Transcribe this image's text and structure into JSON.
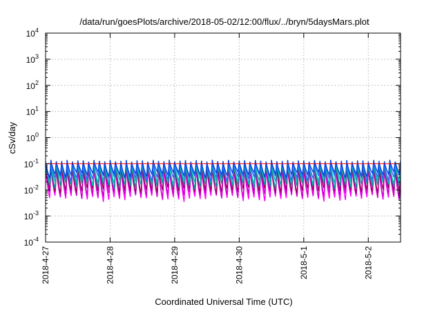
{
  "chart_data": {
    "type": "line",
    "title": "/data/run/goesPlots/archive/2018-05-02/12:00/flux/../bryn/5daysMars.plot",
    "xlabel": "Coordinated Universal Time (UTC)",
    "ylabel": "cSv/day",
    "yscale": "log",
    "ylim": [
      0.0001,
      10000
    ],
    "xlim": [
      "2018-04-27",
      "2018-05-02 12:00"
    ],
    "grid": true,
    "legend": "none",
    "x_ticks": [
      "2018-4-27",
      "2018-4-28",
      "2018-4-29",
      "2018-4-30",
      "2018-5-1",
      "2018-5-2"
    ],
    "y_ticks": [
      {
        "base": "10",
        "exp": "-4"
      },
      {
        "base": "10",
        "exp": "-3"
      },
      {
        "base": "10",
        "exp": "-2"
      },
      {
        "base": "10",
        "exp": "-1"
      },
      {
        "base": "10",
        "exp": "0"
      },
      {
        "base": "10",
        "exp": "1"
      },
      {
        "base": "10",
        "exp": "2"
      },
      {
        "base": "10",
        "exp": "3"
      },
      {
        "base": "10",
        "exp": "4"
      }
    ],
    "cycle_period_hours": 2,
    "series": [
      {
        "color": "#ff00ff",
        "peak": 0.075,
        "trough": 0.0045
      },
      {
        "color": "#cc00cc",
        "peak": 0.08,
        "trough": 0.006
      },
      {
        "color": "#990066",
        "peak": 0.09,
        "trough": 0.009
      },
      {
        "color": "#009999",
        "peak": 0.1,
        "trough": 0.014
      },
      {
        "color": "#00bbbb",
        "peak": 0.105,
        "trough": 0.02
      },
      {
        "color": "#3366ff",
        "peak": 0.12,
        "trough": 0.028
      },
      {
        "color": "#0044dd",
        "peak": 0.13,
        "trough": 0.038
      }
    ],
    "upper_envelope": {
      "color": "#ff0000",
      "value": 0.1
    }
  }
}
